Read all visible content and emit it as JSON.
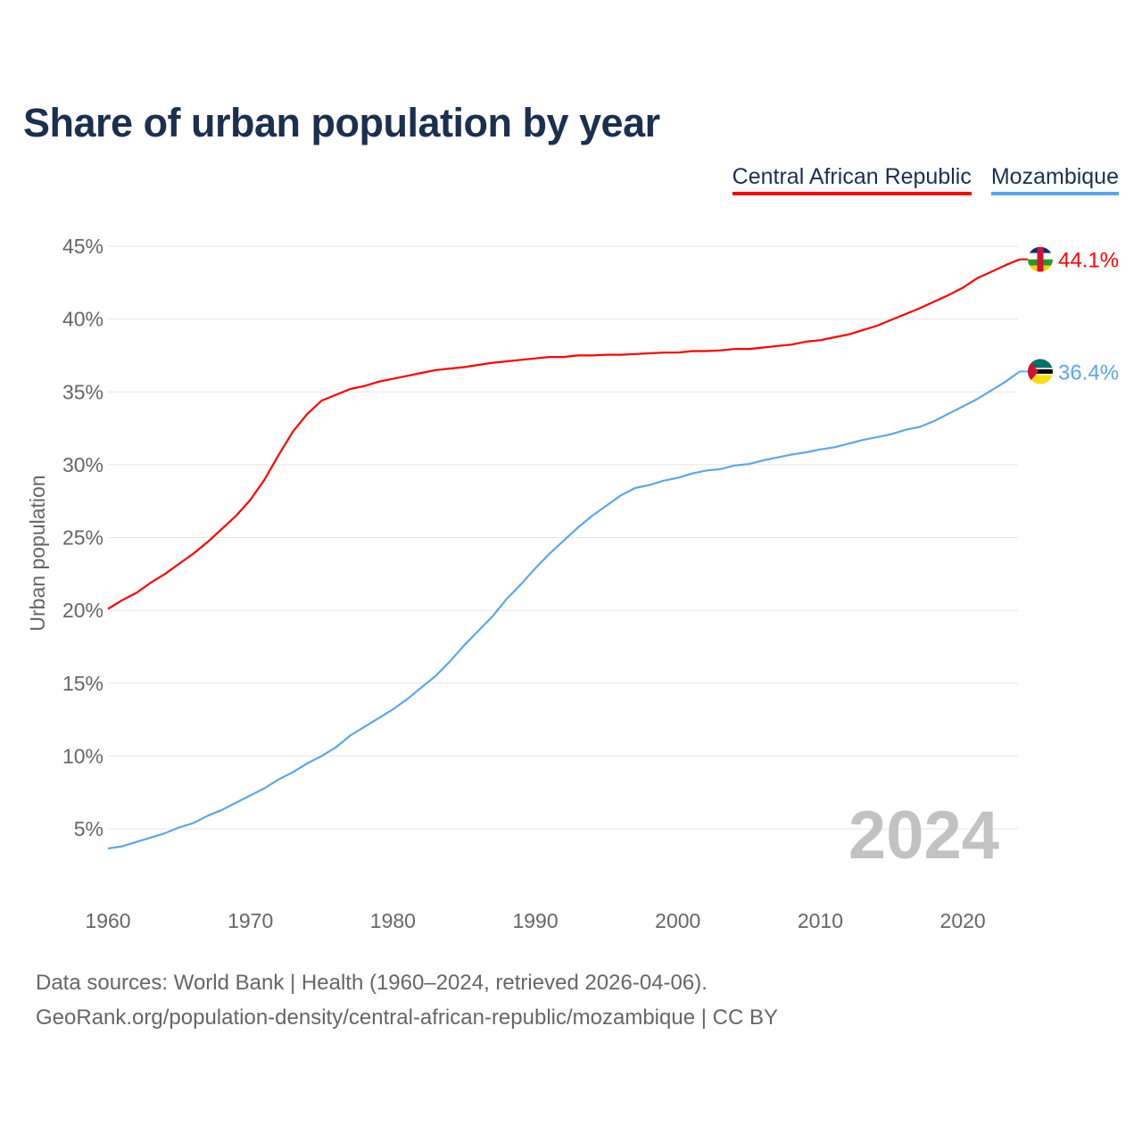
{
  "title": "Share of urban population by year",
  "legend": [
    {
      "label": "Central African Republic",
      "color": "#ff0000"
    },
    {
      "label": "Mozambique",
      "color": "#5ba7ee"
    }
  ],
  "source_line1": "Data sources: World Bank | Health (1960–2024, retrieved 2026-04-06).",
  "source_line2": "GeoRank.org/population-density/central-african-republic/mozambique | CC BY",
  "chart_data": {
    "type": "line",
    "title": "Share of urban population by year",
    "xlabel": "",
    "ylabel": "Urban population",
    "xlim": [
      1960,
      2024
    ],
    "ylim": [
      2.2,
      45
    ],
    "yticks": [
      5,
      10,
      15,
      20,
      25,
      30,
      35,
      40,
      45
    ],
    "ytick_labels": [
      "5%",
      "10%",
      "15%",
      "20%",
      "25%",
      "30%",
      "35%",
      "40%",
      "45%"
    ],
    "xticks": [
      1960,
      1970,
      1980,
      1990,
      2000,
      2010,
      2020
    ],
    "xtick_labels": [
      "1960",
      "1970",
      "1980",
      "1990",
      "2000",
      "2010",
      "2020"
    ],
    "grid": true,
    "legend_position": "top-right",
    "year_watermark": "2024",
    "x": [
      1960,
      1961,
      1962,
      1963,
      1964,
      1965,
      1966,
      1967,
      1968,
      1969,
      1970,
      1971,
      1972,
      1973,
      1974,
      1975,
      1976,
      1977,
      1978,
      1979,
      1980,
      1981,
      1982,
      1983,
      1984,
      1985,
      1986,
      1987,
      1988,
      1989,
      1990,
      1991,
      1992,
      1993,
      1994,
      1995,
      1996,
      1997,
      1998,
      1999,
      2000,
      2001,
      2002,
      2003,
      2004,
      2005,
      2006,
      2007,
      2008,
      2009,
      2010,
      2011,
      2012,
      2013,
      2014,
      2015,
      2016,
      2017,
      2018,
      2019,
      2020,
      2021,
      2022,
      2023,
      2024
    ],
    "series": [
      {
        "name": "Central African Republic",
        "color": "#ff0000",
        "end_label": "44.1%",
        "flag": "car-flag",
        "values": [
          20.1,
          20.7,
          21.2,
          21.9,
          22.5,
          23.2,
          23.9,
          24.7,
          25.6,
          26.5,
          27.6,
          29.0,
          30.7,
          32.3,
          33.5,
          34.4,
          34.8,
          35.2,
          35.4,
          35.7,
          35.9,
          36.1,
          36.3,
          36.5,
          36.6,
          36.7,
          36.85,
          37.0,
          37.1,
          37.2,
          37.3,
          37.4,
          37.4,
          37.5,
          37.5,
          37.55,
          37.55,
          37.6,
          37.65,
          37.7,
          37.7,
          37.8,
          37.8,
          37.85,
          37.95,
          37.95,
          38.05,
          38.15,
          38.25,
          38.45,
          38.55,
          38.75,
          38.95,
          39.25,
          39.55,
          39.95,
          40.35,
          40.75,
          41.2,
          41.65,
          42.15,
          42.8,
          43.25,
          43.7,
          44.1
        ]
      },
      {
        "name": "Mozambique",
        "color": "#5ba7ee",
        "end_label": "36.4%",
        "flag": "mozambique-flag",
        "values": [
          3.65,
          3.8,
          4.1,
          4.4,
          4.7,
          5.1,
          5.4,
          5.9,
          6.3,
          6.8,
          7.3,
          7.8,
          8.4,
          8.9,
          9.5,
          10.0,
          10.6,
          11.4,
          12.0,
          12.6,
          13.2,
          13.9,
          14.7,
          15.5,
          16.5,
          17.6,
          18.6,
          19.6,
          20.8,
          21.8,
          22.9,
          23.9,
          24.8,
          25.7,
          26.5,
          27.2,
          27.9,
          28.4,
          28.6,
          28.9,
          29.1,
          29.4,
          29.6,
          29.7,
          29.95,
          30.05,
          30.3,
          30.5,
          30.7,
          30.85,
          31.05,
          31.2,
          31.45,
          31.7,
          31.9,
          32.1,
          32.4,
          32.6,
          33.0,
          33.5,
          34.0,
          34.5,
          35.1,
          35.7,
          36.4
        ]
      }
    ]
  }
}
